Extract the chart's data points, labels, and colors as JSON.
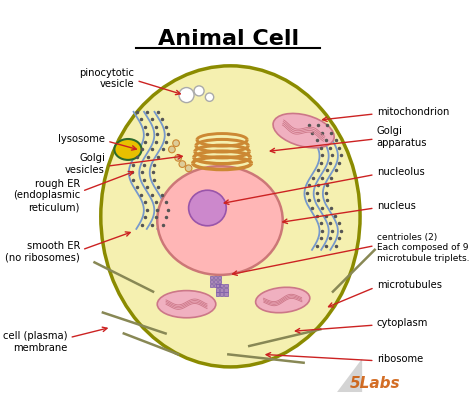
{
  "title": "Animal Cell",
  "bg_color": "#ffffff",
  "cell_fill": "#f5f0b0",
  "cell_border": "#8B8B00",
  "nucleus_fill": "#ffb6b6",
  "nucleus_border": "#cc7777",
  "nucleolus_fill": "#cc88cc",
  "nucleolus_border": "#9955aa",
  "lysosome_fill": "#e8c000",
  "lysosome_border": "#2d6b2d",
  "mito_fill": "#f0b0c0",
  "mito_border": "#cc7788",
  "golgi_color": "#cc8833",
  "rough_er_color": "#7799cc",
  "smooth_er_color": "#7799cc",
  "ribosome_color": "#444444",
  "microtubule_color": "#888855",
  "centriole_color": "#aa88bb",
  "vesicle_fill": "#ffffff",
  "vesicle_border": "#888888",
  "arrow_color": "#cc2222",
  "label_color": "#000000",
  "watermark_color": "#cc5500",
  "watermark_text": "5Labs",
  "labels": {
    "pinocytotic_vesicle": "pinocytotic\nvesicle",
    "lysosome": "lysosome",
    "golgi_vesicles": "Golgi\nvesicles",
    "rough_er": "rough ER\n(endoplasmic\nreticulum)",
    "smooth_er": "smooth ER\n(no ribosomes)",
    "cell_membrane": "cell (plasma)\nmembrane",
    "mitochondrion": "mitochondrion",
    "golgi_apparatus": "Golgi\napparatus",
    "nucleolus": "nucleolus",
    "nucleus": "nucleus",
    "centrioles": "centrioles (2)\nEach composed of 9\nmicrotubule triplets.",
    "microtubules": "microtubules",
    "cytoplasm": "cytoplasm",
    "ribosome": "ribosome"
  }
}
